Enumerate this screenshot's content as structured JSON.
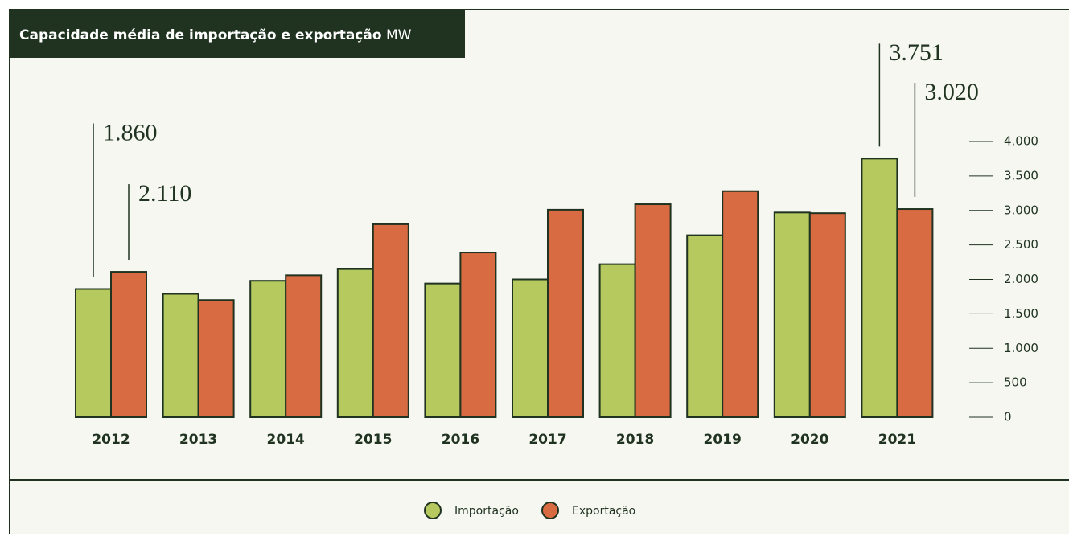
{
  "chart_data": {
    "type": "bar",
    "title": "Capacidade média de importação e exportação",
    "unit": "MW",
    "categories": [
      "2012",
      "2013",
      "2014",
      "2015",
      "2016",
      "2017",
      "2018",
      "2019",
      "2020",
      "2021"
    ],
    "series": [
      {
        "name": "Importação",
        "color": "#b5c95f",
        "values": [
          1860,
          1790,
          1980,
          2150,
          1940,
          2000,
          2220,
          2640,
          2970,
          3751
        ],
        "value_labels": [
          "1.860",
          null,
          null,
          null,
          null,
          null,
          null,
          null,
          null,
          "3.751"
        ]
      },
      {
        "name": "Exportação",
        "color": "#d96b43",
        "values": [
          2110,
          1700,
          2060,
          2800,
          2390,
          3010,
          3090,
          3280,
          2960,
          3020
        ],
        "value_labels": [
          "2.110",
          null,
          null,
          null,
          null,
          null,
          null,
          null,
          null,
          "3.020"
        ]
      }
    ],
    "ylim": [
      0,
      4000
    ],
    "yticks": [
      {
        "value": 0,
        "label": "0"
      },
      {
        "value": 500,
        "label": "500"
      },
      {
        "value": 1000,
        "label": "1.000"
      },
      {
        "value": 1500,
        "label": "1.500"
      },
      {
        "value": 2000,
        "label": "2.000"
      },
      {
        "value": 2500,
        "label": "2.500"
      },
      {
        "value": 3000,
        "label": "3.000"
      },
      {
        "value": 3500,
        "label": "3.500"
      },
      {
        "value": 4000,
        "label": "4.000"
      }
    ],
    "legend": "bottom"
  }
}
